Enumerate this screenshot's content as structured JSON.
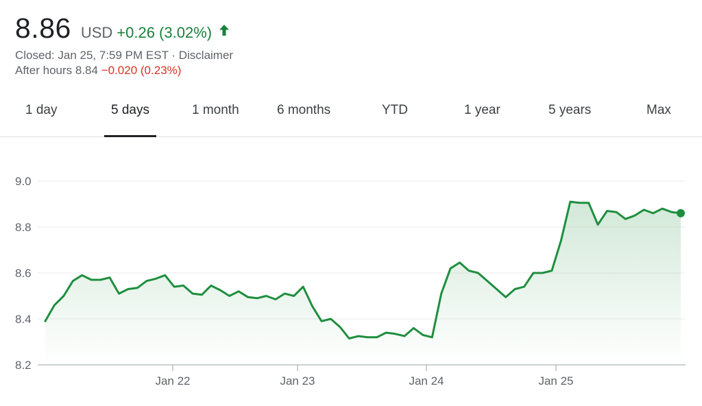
{
  "quote": {
    "price": "8.86",
    "currency": "USD",
    "change": "+0.26 (3.02%)",
    "direction_icon": "arrow-up-icon",
    "closed_text": "Closed: Jan 25, 7:59 PM EST",
    "separator": " · ",
    "disclaimer": "Disclaimer",
    "after_hours_label": "After hours 8.84",
    "after_hours_change": "−0.020 (0.23%)",
    "colors": {
      "up": "#188038",
      "down": "#d93025"
    }
  },
  "tabs": [
    {
      "label": "1 day",
      "active": false
    },
    {
      "label": "5 days",
      "active": true
    },
    {
      "label": "1 month",
      "active": false
    },
    {
      "label": "6 months",
      "active": false
    },
    {
      "label": "YTD",
      "active": false
    },
    {
      "label": "1 year",
      "active": false
    },
    {
      "label": "5 years",
      "active": false
    },
    {
      "label": "Max",
      "active": false
    }
  ],
  "chart_data": {
    "type": "area",
    "title": "",
    "xlabel": "",
    "ylabel": "",
    "ylim": [
      8.2,
      9.0
    ],
    "yticks": [
      "9.0",
      "8.8",
      "8.6",
      "8.4",
      "8.2"
    ],
    "xticks": [
      "Jan 22",
      "Jan 23",
      "Jan 24",
      "Jan 25"
    ],
    "grid": true,
    "line_color": "#1e8e3e",
    "series": [
      {
        "values": [
          8.39,
          8.46,
          8.5,
          8.565,
          8.59,
          8.57,
          8.57,
          8.58,
          8.51,
          8.53,
          8.535,
          8.565,
          8.575,
          8.59,
          8.54,
          8.545,
          8.51,
          8.505,
          8.545,
          8.525,
          8.5,
          8.52,
          8.495,
          8.49,
          8.5,
          8.485,
          8.51,
          8.5,
          8.54,
          8.455,
          8.39,
          8.4,
          8.365,
          8.315,
          8.325,
          8.32,
          8.32,
          8.34,
          8.335,
          8.325,
          8.36,
          8.33,
          8.32,
          8.51,
          8.62,
          8.645,
          8.61,
          8.6,
          8.565,
          8.53,
          8.495,
          8.53,
          8.54,
          8.6,
          8.6,
          8.61,
          8.74,
          8.91,
          8.905,
          8.905,
          8.81,
          8.87,
          8.865,
          8.835,
          8.85,
          8.875,
          8.86,
          8.88,
          8.865,
          8.86
        ]
      }
    ]
  }
}
